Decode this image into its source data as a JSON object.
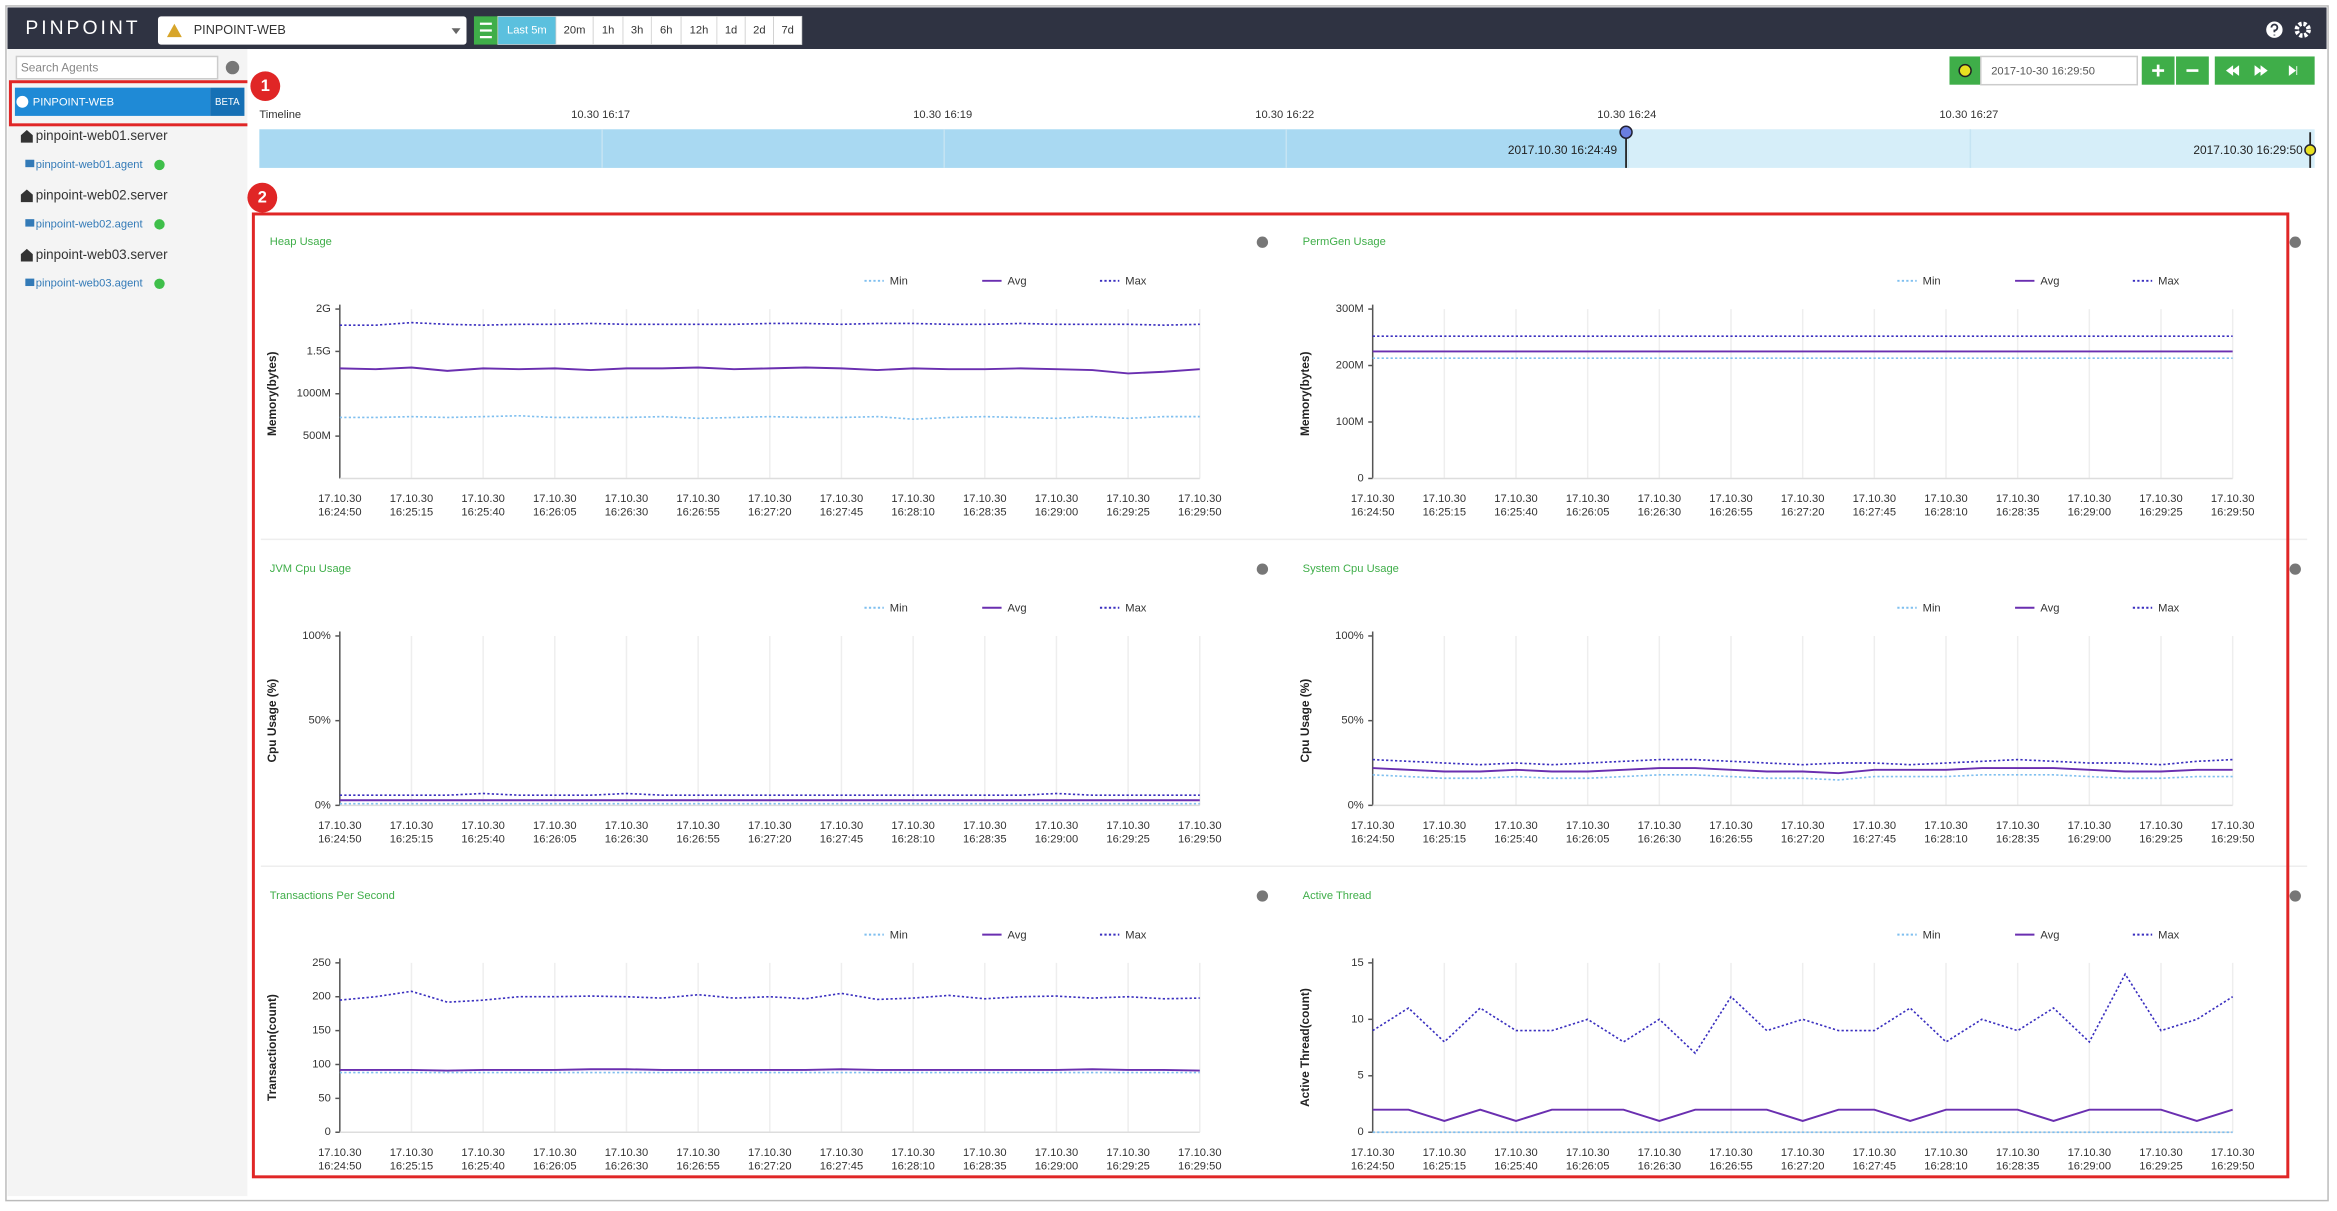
{
  "header": {
    "logo": "PINPOINT",
    "application": "PINPOINT-WEB",
    "periods": [
      "Last 5m",
      "20m",
      "1h",
      "3h",
      "6h",
      "12h",
      "1d",
      "2d",
      "7d"
    ]
  },
  "sidebar": {
    "search_placeholder": "Search Agents",
    "application": {
      "name": "PINPOINT-WEB",
      "badge": "BETA"
    },
    "servers": [
      {
        "name": "pinpoint-web01.server",
        "agent": "pinpoint-web01.agent"
      },
      {
        "name": "pinpoint-web02.server",
        "agent": "pinpoint-web02.agent"
      },
      {
        "name": "pinpoint-web03.server",
        "agent": "pinpoint-web03.agent"
      }
    ]
  },
  "navigator": {
    "datetime": "2017-10-30 16:29:50",
    "timeline_label": "Timeline",
    "timeline_ticks": [
      "10.30 16:17",
      "10.30 16:19",
      "10.30 16:22",
      "10.30 16:24",
      "10.30 16:27"
    ],
    "range_start": "2017.10.30 16:24:49",
    "range_end": "2017.10.30 16:29:50"
  },
  "annotations": [
    "1",
    "2"
  ],
  "time_axis": [
    [
      "17.10.30",
      "16:24:50"
    ],
    [
      "17.10.30",
      "16:25:15"
    ],
    [
      "17.10.30",
      "16:25:40"
    ],
    [
      "17.10.30",
      "16:26:05"
    ],
    [
      "17.10.30",
      "16:26:30"
    ],
    [
      "17.10.30",
      "16:26:55"
    ],
    [
      "17.10.30",
      "16:27:20"
    ],
    [
      "17.10.30",
      "16:27:45"
    ],
    [
      "17.10.30",
      "16:28:10"
    ],
    [
      "17.10.30",
      "16:28:35"
    ],
    [
      "17.10.30",
      "16:29:00"
    ],
    [
      "17.10.30",
      "16:29:25"
    ],
    [
      "17.10.30",
      "16:29:50"
    ]
  ],
  "chart_data": [
    {
      "type": "line",
      "title": "Heap Usage",
      "y_label": "Memory(bytes)",
      "ylim": [
        0,
        2000000000.0
      ],
      "yticks": [
        {
          "value": 500000000.0,
          "label": "500M"
        },
        {
          "value": 1000000000.0,
          "label": "1000M"
        },
        {
          "value": 1500000000.0,
          "label": "1.5G"
        },
        {
          "value": 2000000000.0,
          "label": "2G"
        }
      ],
      "series": [
        {
          "name": "Min",
          "color": "#7fbfef",
          "line_style": "dotted",
          "values": [
            720000000.0,
            720000000.0,
            730000000.0,
            720000000.0,
            730000000.0,
            740000000.0,
            720000000.0,
            720000000.0,
            720000000.0,
            730000000.0,
            710000000.0,
            720000000.0,
            730000000.0,
            720000000.0,
            720000000.0,
            730000000.0,
            700000000.0,
            720000000.0,
            730000000.0,
            720000000.0,
            710000000.0,
            730000000.0,
            710000000.0,
            730000000.0,
            730000000.0
          ]
        },
        {
          "name": "Avg",
          "color": "#6a2fb0",
          "line_style": "solid",
          "values": [
            1300000000.0,
            1290000000.0,
            1310000000.0,
            1270000000.0,
            1300000000.0,
            1290000000.0,
            1300000000.0,
            1280000000.0,
            1300000000.0,
            1300000000.0,
            1310000000.0,
            1290000000.0,
            1300000000.0,
            1310000000.0,
            1300000000.0,
            1280000000.0,
            1300000000.0,
            1290000000.0,
            1290000000.0,
            1300000000.0,
            1290000000.0,
            1280000000.0,
            1240000000.0,
            1260000000.0,
            1290000000.0
          ]
        },
        {
          "name": "Max",
          "color": "#3a2fbf",
          "line_style": "dotted",
          "values": [
            1810000000.0,
            1810000000.0,
            1840000000.0,
            1820000000.0,
            1810000000.0,
            1820000000.0,
            1820000000.0,
            1830000000.0,
            1820000000.0,
            1820000000.0,
            1820000000.0,
            1820000000.0,
            1830000000.0,
            1830000000.0,
            1820000000.0,
            1830000000.0,
            1830000000.0,
            1820000000.0,
            1820000000.0,
            1830000000.0,
            1820000000.0,
            1820000000.0,
            1820000000.0,
            1810000000.0,
            1820000000.0
          ]
        }
      ]
    },
    {
      "type": "line",
      "title": "PermGen Usage",
      "y_label": "Memory(bytes)",
      "ylim": [
        0,
        300000000.0
      ],
      "yticks": [
        0,
        {
          "value": 100000000.0,
          "label": "100M"
        },
        {
          "value": 200000000.0,
          "label": "200M"
        },
        {
          "value": 300000000.0,
          "label": "300M"
        }
      ],
      "series": [
        {
          "name": "Min",
          "color": "#7fbfef",
          "line_style": "dotted",
          "values": [
            213000000.0,
            213000000.0,
            213000000.0,
            213000000.0,
            213000000.0,
            213000000.0,
            213000000.0,
            213000000.0,
            213000000.0,
            213000000.0,
            213000000.0,
            213000000.0,
            213000000.0,
            213000000.0,
            213000000.0,
            213000000.0,
            213000000.0,
            213000000.0,
            213000000.0,
            213000000.0,
            213000000.0,
            213000000.0,
            213000000.0,
            213000000.0,
            213000000.0
          ]
        },
        {
          "name": "Avg",
          "color": "#6a2fb0",
          "line_style": "solid",
          "values": [
            225000000.0,
            225000000.0,
            225000000.0,
            225000000.0,
            225000000.0,
            225000000.0,
            225000000.0,
            225000000.0,
            225000000.0,
            225000000.0,
            225000000.0,
            225000000.0,
            225000000.0,
            225000000.0,
            225000000.0,
            225000000.0,
            225000000.0,
            225000000.0,
            225000000.0,
            225000000.0,
            225000000.0,
            225000000.0,
            225000000.0,
            225000000.0,
            225000000.0
          ]
        },
        {
          "name": "Max",
          "color": "#3a2fbf",
          "line_style": "dotted",
          "values": [
            252000000.0,
            252000000.0,
            252000000.0,
            252000000.0,
            252000000.0,
            252000000.0,
            252000000.0,
            252000000.0,
            252000000.0,
            252000000.0,
            252000000.0,
            252000000.0,
            252000000.0,
            252000000.0,
            252000000.0,
            252000000.0,
            252000000.0,
            252000000.0,
            252000000.0,
            252000000.0,
            252000000.0,
            252000000.0,
            252000000.0,
            252000000.0,
            252000000.0
          ]
        }
      ]
    },
    {
      "type": "line",
      "title": "JVM Cpu Usage",
      "y_label": "Cpu Usage (%)",
      "ylim": [
        0,
        100
      ],
      "yticks": [
        {
          "value": 0,
          "label": "0%"
        },
        {
          "value": 50,
          "label": "50%"
        },
        {
          "value": 100,
          "label": "100%"
        }
      ],
      "series": [
        {
          "name": "Min",
          "color": "#7fbfef",
          "line_style": "dotted",
          "values": [
            1,
            1,
            1,
            1,
            1,
            1,
            1,
            1,
            1,
            1,
            1,
            1,
            1,
            1,
            1,
            1,
            1,
            1,
            1,
            1,
            1,
            1,
            1,
            1,
            1
          ]
        },
        {
          "name": "Avg",
          "color": "#6a2fb0",
          "line_style": "solid",
          "values": [
            3,
            3,
            3,
            3,
            3,
            3,
            3,
            3,
            3,
            3,
            3,
            3,
            3,
            3,
            3,
            3,
            3,
            3,
            3,
            3,
            3,
            3,
            3,
            3,
            3
          ]
        },
        {
          "name": "Max",
          "color": "#3a2fbf",
          "line_style": "dotted",
          "values": [
            6,
            6,
            6,
            6,
            7,
            6,
            6,
            6,
            7,
            6,
            6,
            6,
            6,
            6,
            6,
            6,
            6,
            6,
            6,
            6,
            7,
            6,
            6,
            6,
            6
          ]
        }
      ]
    },
    {
      "type": "line",
      "title": "System Cpu Usage",
      "y_label": "Cpu Usage (%)",
      "ylim": [
        0,
        100
      ],
      "yticks": [
        {
          "value": 0,
          "label": "0%"
        },
        {
          "value": 50,
          "label": "50%"
        },
        {
          "value": 100,
          "label": "100%"
        }
      ],
      "series": [
        {
          "name": "Min",
          "color": "#7fbfef",
          "line_style": "dotted",
          "values": [
            18,
            17,
            16,
            16,
            17,
            16,
            16,
            17,
            18,
            18,
            17,
            16,
            16,
            15,
            17,
            17,
            17,
            18,
            18,
            18,
            17,
            16,
            16,
            17,
            17
          ]
        },
        {
          "name": "Avg",
          "color": "#6a2fb0",
          "line_style": "solid",
          "values": [
            22,
            21,
            20,
            20,
            21,
            20,
            20,
            21,
            22,
            22,
            21,
            20,
            20,
            19,
            21,
            21,
            21,
            22,
            22,
            22,
            21,
            20,
            20,
            21,
            21
          ]
        },
        {
          "name": "Max",
          "color": "#3a2fbf",
          "line_style": "dotted",
          "values": [
            27,
            26,
            25,
            24,
            25,
            24,
            25,
            26,
            27,
            27,
            26,
            25,
            24,
            25,
            25,
            24,
            25,
            26,
            27,
            26,
            25,
            25,
            24,
            26,
            27
          ]
        }
      ]
    },
    {
      "type": "line",
      "title": "Transactions Per Second",
      "y_label": "Transaction(count)",
      "ylim": [
        0,
        250
      ],
      "yticks": [
        0,
        50,
        100,
        150,
        200,
        250
      ],
      "series": [
        {
          "name": "Min",
          "color": "#7fbfef",
          "line_style": "dotted",
          "values": [
            88,
            88,
            88,
            88,
            88,
            88,
            88,
            88,
            88,
            88,
            88,
            88,
            88,
            88,
            88,
            88,
            88,
            88,
            88,
            88,
            88,
            88,
            88,
            88,
            88
          ]
        },
        {
          "name": "Avg",
          "color": "#6a2fb0",
          "line_style": "solid",
          "values": [
            92,
            92,
            92,
            91,
            92,
            92,
            92,
            93,
            93,
            92,
            92,
            92,
            92,
            92,
            93,
            92,
            92,
            92,
            92,
            92,
            92,
            93,
            92,
            92,
            91
          ]
        },
        {
          "name": "Max",
          "color": "#3a2fbf",
          "line_style": "dotted",
          "values": [
            195,
            200,
            208,
            192,
            195,
            200,
            200,
            201,
            200,
            198,
            203,
            198,
            200,
            197,
            205,
            196,
            198,
            202,
            197,
            200,
            201,
            198,
            200,
            197,
            198
          ]
        }
      ]
    },
    {
      "type": "line",
      "title": "Active Thread",
      "y_label": "Active Thread(count)",
      "ylim": [
        0,
        15
      ],
      "yticks": [
        0,
        5,
        10,
        15
      ],
      "series": [
        {
          "name": "Min",
          "color": "#7fbfef",
          "line_style": "dotted",
          "values": [
            0,
            0,
            0,
            0,
            0,
            0,
            0,
            0,
            0,
            0,
            0,
            0,
            0,
            0,
            0,
            0,
            0,
            0,
            0,
            0,
            0,
            0,
            0,
            0,
            0
          ]
        },
        {
          "name": "Avg",
          "color": "#6a2fb0",
          "line_style": "solid",
          "values": [
            2,
            2,
            1,
            2,
            1,
            2,
            2,
            2,
            1,
            2,
            2,
            2,
            1,
            2,
            2,
            1,
            2,
            2,
            2,
            1,
            2,
            2,
            2,
            1,
            2
          ]
        },
        {
          "name": "Max",
          "color": "#3a2fbf",
          "line_style": "dotted",
          "values": [
            9,
            11,
            8,
            11,
            9,
            9,
            10,
            8,
            10,
            7,
            12,
            9,
            10,
            9,
            9,
            11,
            8,
            10,
            9,
            11,
            8,
            14,
            9,
            10,
            12
          ]
        }
      ]
    }
  ]
}
